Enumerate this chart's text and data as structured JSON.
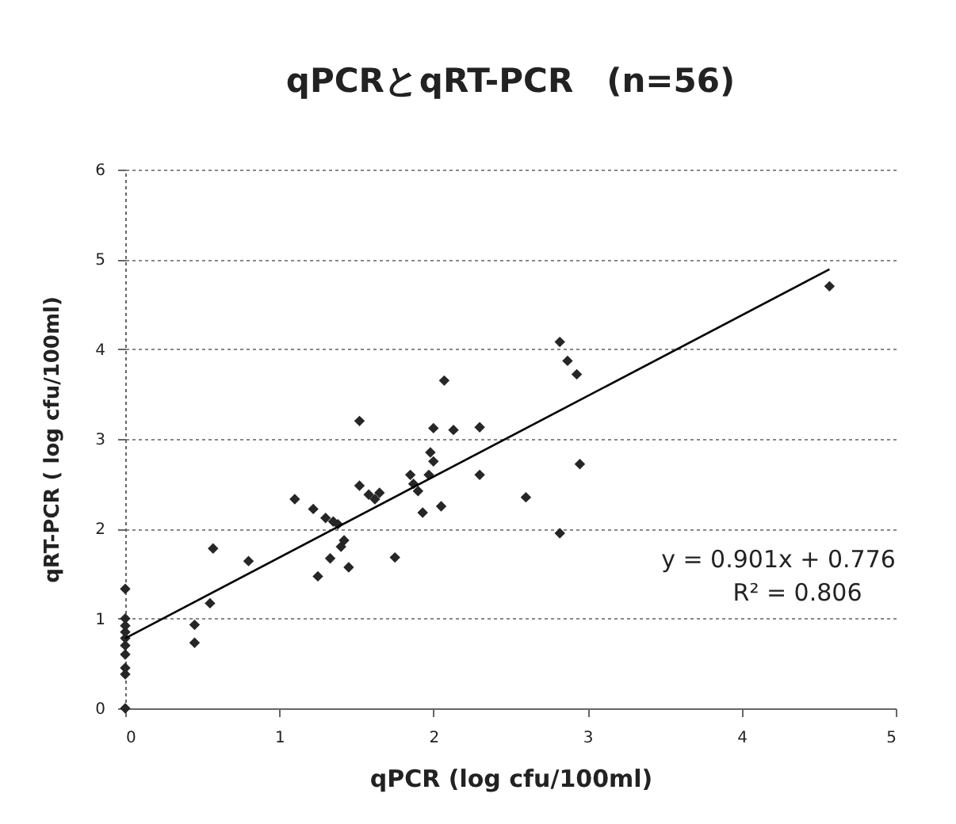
{
  "chart_data": {
    "type": "scatter",
    "title": "qPCRとqRT-PCR　(n=56)",
    "xlabel": "qPCR (log cfu/100ml)",
    "ylabel": "qRT-PCR ( log cfu/100ml)",
    "xlim": [
      0,
      5
    ],
    "ylim": [
      0,
      6
    ],
    "xticks": [
      0,
      1,
      2,
      3,
      4,
      5
    ],
    "yticks": [
      0,
      1,
      2,
      3,
      4,
      5,
      6
    ],
    "grid": "y",
    "marker": "diamond",
    "annotations": [
      "y = 0.901x + 0.776",
      "R² = 0.806"
    ],
    "series": [
      {
        "color": "#262626",
        "x": [
          0,
          0,
          0,
          0,
          0,
          0,
          0,
          0,
          0,
          0,
          0.45,
          0.45,
          0.55,
          0.57,
          0.8,
          1.1,
          1.22,
          1.25,
          1.3,
          1.33,
          1.35,
          1.38,
          1.4,
          1.42,
          1.45,
          1.52,
          1.52,
          1.58,
          1.62,
          1.65,
          1.75,
          1.85,
          1.87,
          1.9,
          1.93,
          1.97,
          1.98,
          2.0,
          2.0,
          2.05,
          2.07,
          2.13,
          2.3,
          2.3,
          2.6,
          2.82,
          2.82,
          2.87,
          2.93,
          2.95,
          4.57
        ],
        "values": [
          0,
          0.38,
          0.45,
          0.6,
          0.7,
          0.78,
          0.85,
          0.92,
          1.0,
          1.33,
          0.93,
          0.73,
          1.17,
          1.78,
          1.64,
          2.33,
          2.22,
          1.47,
          2.12,
          1.67,
          2.08,
          2.05,
          1.8,
          1.87,
          1.57,
          3.2,
          2.48,
          2.38,
          2.33,
          2.4,
          1.68,
          2.6,
          2.5,
          2.42,
          2.18,
          2.6,
          2.85,
          3.12,
          2.75,
          2.25,
          3.65,
          3.1,
          3.13,
          2.6,
          2.35,
          4.08,
          1.95,
          3.87,
          3.72,
          2.72,
          4.7
        ]
      },
      {
        "type": "line",
        "marker": "none",
        "color": "#000000",
        "x": [
          0,
          4.57
        ],
        "values": [
          0.78,
          4.89
        ]
      }
    ]
  }
}
